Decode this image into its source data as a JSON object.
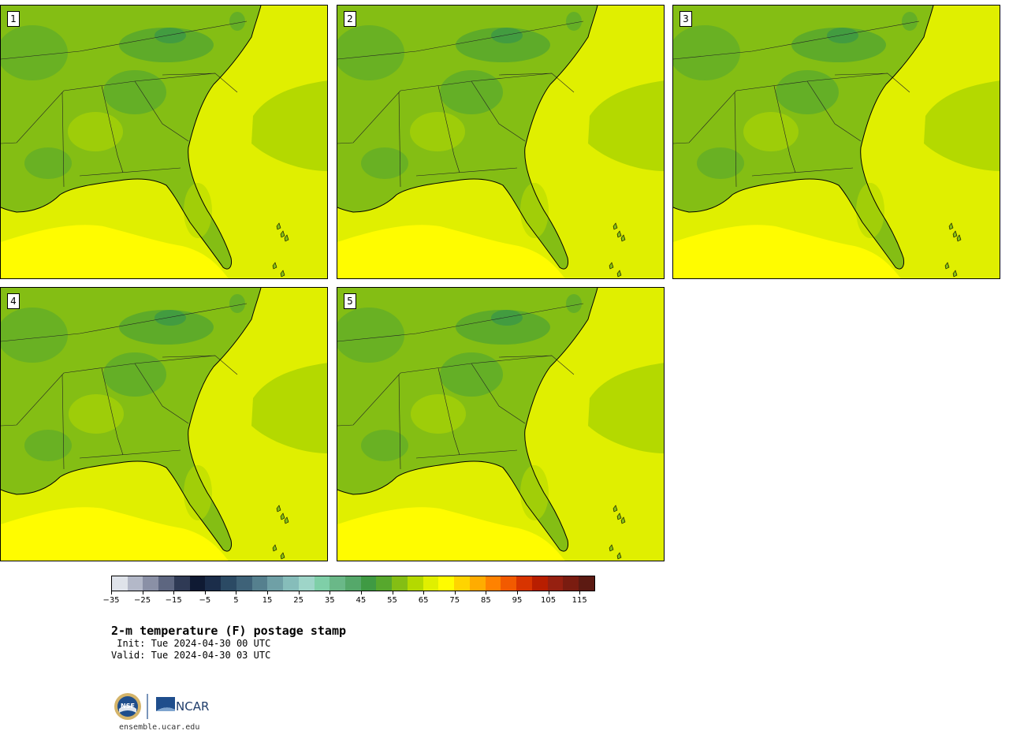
{
  "panels": [
    {
      "label": "1"
    },
    {
      "label": "2"
    },
    {
      "label": "3"
    },
    {
      "label": "4"
    },
    {
      "label": "5"
    }
  ],
  "colorbar": {
    "colors": [
      "#dfe3ea",
      "#b3b8c8",
      "#8a90a6",
      "#5d6680",
      "#2f3a55",
      "#0f1a33",
      "#1b2d4a",
      "#2b4a64",
      "#3e6278",
      "#55808e",
      "#6fa0a6",
      "#86bdba",
      "#9ed5c8",
      "#7fcfa8",
      "#6ab888",
      "#55a86a",
      "#3f9a43",
      "#57a82d",
      "#84be14",
      "#b4d900",
      "#e0ef00",
      "#fffc00",
      "#ffd400",
      "#ffac00",
      "#ff8200",
      "#f25a00",
      "#d83400",
      "#b81e00",
      "#962010",
      "#7a1c10",
      "#5c1a12"
    ],
    "tick_labels": [
      "−35",
      "−25",
      "−15",
      "−5",
      "5",
      "15",
      "25",
      "35",
      "45",
      "55",
      "65",
      "75",
      "85",
      "95",
      "105",
      "115"
    ]
  },
  "title": "2-m temperature (F) postage stamp",
  "init": " Init: Tue 2024-04-30 00 UTC",
  "valid": "Valid: Tue 2024-04-30 03 UTC",
  "footer": {
    "logo_nsf": "NSF",
    "logo_ncar": "NCAR",
    "url": "ensemble.ucar.edu"
  }
}
